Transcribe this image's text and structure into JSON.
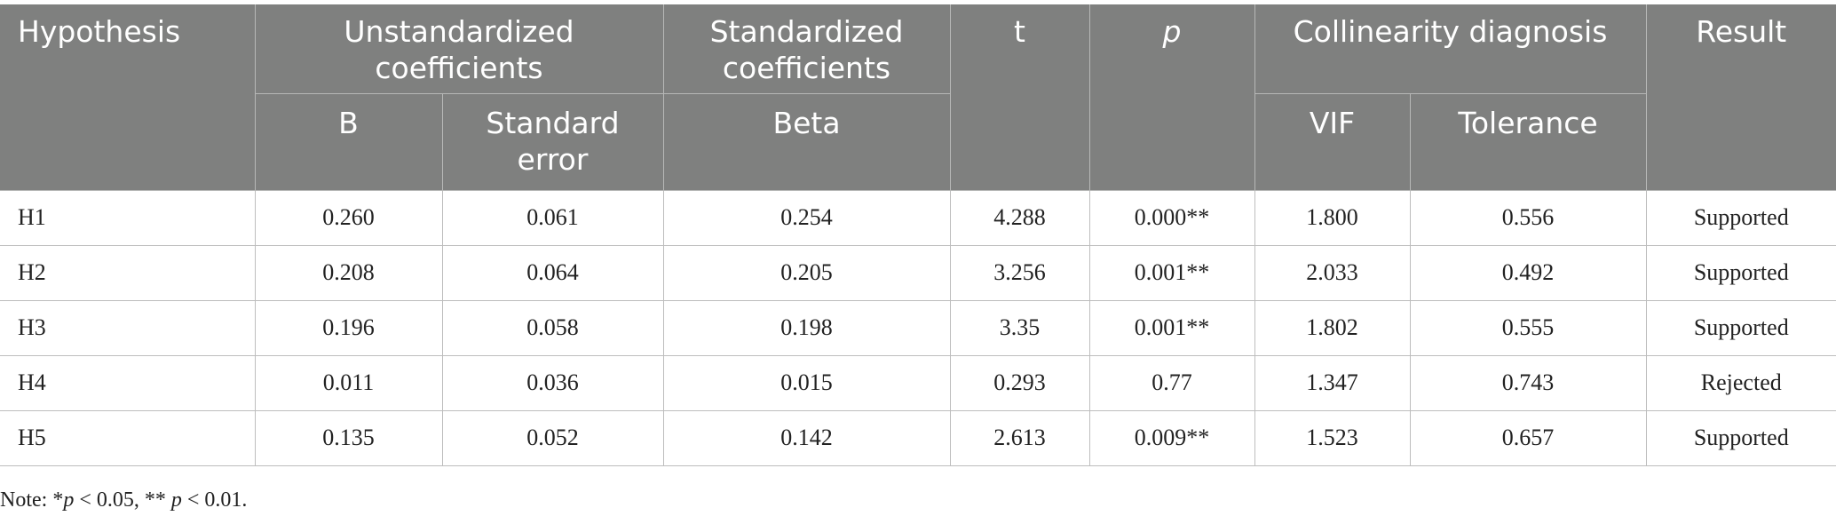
{
  "table": {
    "headers": {
      "hypothesis": "Hypothesis",
      "unstandardized": "Unstandardized coefficients",
      "standardized": "Standardized coefficients",
      "t": "t",
      "p": "p",
      "collinearity": "Collinearity diagnosis",
      "result": "Result",
      "b": "B",
      "std_error": "Standard error",
      "beta": "Beta",
      "vif": "VIF",
      "tolerance": "Tolerance"
    },
    "rows": [
      {
        "hypothesis": "H1",
        "b": "0.260",
        "se": "0.061",
        "beta": "0.254",
        "t": "4.288",
        "p": "0.000**",
        "vif": "1.800",
        "tolerance": "0.556",
        "result": "Supported"
      },
      {
        "hypothesis": "H2",
        "b": "0.208",
        "se": "0.064",
        "beta": "0.205",
        "t": "3.256",
        "p": "0.001**",
        "vif": "2.033",
        "tolerance": "0.492",
        "result": "Supported"
      },
      {
        "hypothesis": "H3",
        "b": "0.196",
        "se": "0.058",
        "beta": "0.198",
        "t": "3.35",
        "p": "0.001**",
        "vif": "1.802",
        "tolerance": "0.555",
        "result": "Supported"
      },
      {
        "hypothesis": "H4",
        "b": "0.011",
        "se": "0.036",
        "beta": "0.015",
        "t": "0.293",
        "p": "0.77",
        "vif": "1.347",
        "tolerance": "0.743",
        "result": "Rejected"
      },
      {
        "hypothesis": "H5",
        "b": "0.135",
        "se": "0.052",
        "beta": "0.142",
        "t": "2.613",
        "p": "0.009**",
        "vif": "1.523",
        "tolerance": "0.657",
        "result": "Supported"
      }
    ]
  },
  "note": {
    "prefix": "Note: *",
    "p1": "p",
    "mid": " < 0.05, ** ",
    "p2": "p",
    "suffix": " < 0.01."
  }
}
